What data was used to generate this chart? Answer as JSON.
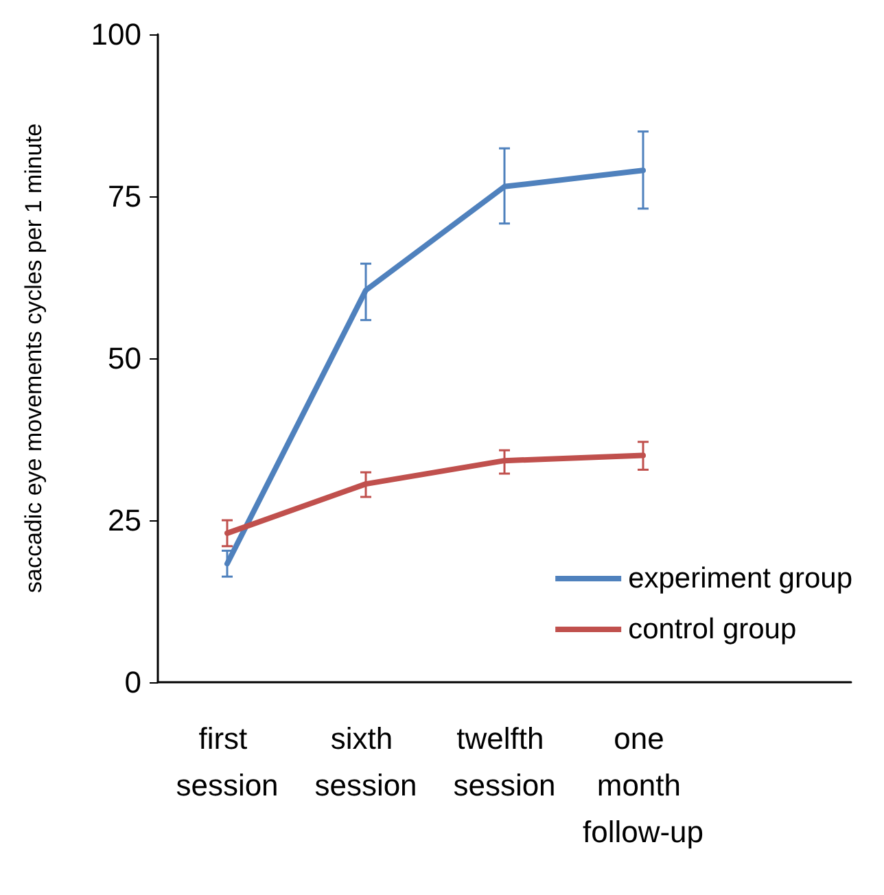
{
  "chart_data": {
    "type": "line",
    "ylabel": "saccadic eye movements cycles per 1 minute",
    "categories": [
      "first session",
      "sixth session",
      "twelfth session",
      "one month follow-up",
      null
    ],
    "series": [
      {
        "name": "experiment group",
        "color": "#4f81bd",
        "values": [
          18.3,
          60.5,
          76.5,
          79,
          null
        ],
        "errors": [
          [
            16.3,
            20.3
          ],
          [
            55.9,
            64.6
          ],
          [
            70.8,
            82.4
          ],
          [
            73.1,
            85
          ],
          null
        ]
      },
      {
        "name": "control group",
        "color": "#c0504d",
        "values": [
          23,
          30.6,
          34.2,
          35,
          null
        ],
        "errors": [
          [
            21,
            25
          ],
          [
            28.6,
            32.4
          ],
          [
            32.2,
            35.8
          ],
          [
            32.8,
            37.1
          ],
          null
        ]
      }
    ],
    "ylim": [
      0,
      100
    ],
    "yticks": [
      0,
      25,
      50,
      75,
      100
    ],
    "grid": false,
    "legend": "bottom right",
    "marker": "none",
    "line_style": "solid"
  }
}
